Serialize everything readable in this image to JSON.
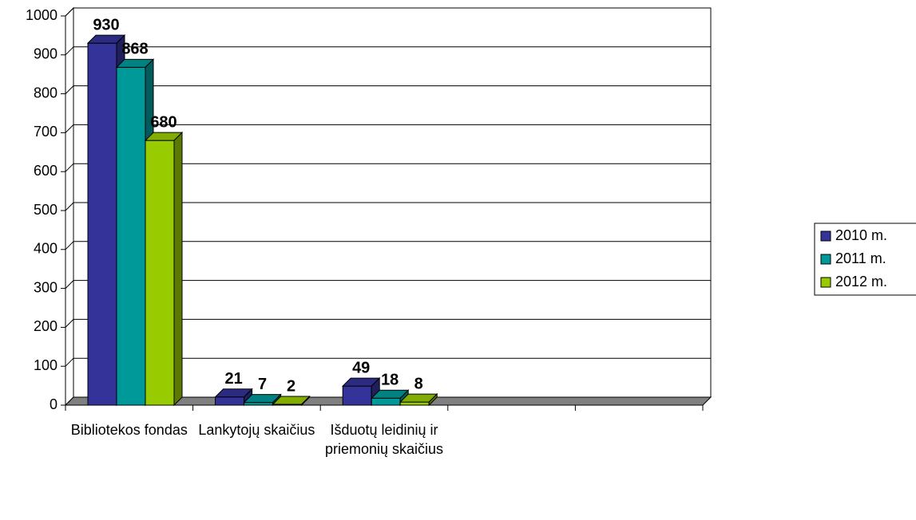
{
  "chart_data": {
    "type": "bar",
    "three_d": true,
    "categories": [
      "Bibliotekos fondas",
      "Lankytojų skaičius",
      "Išduotų leidinių ir priemonių skaičius",
      null,
      null
    ],
    "series": [
      {
        "name": "2010 m.",
        "color": "#333399",
        "values": [
          930,
          21,
          49,
          null,
          null
        ]
      },
      {
        "name": "2011 m.",
        "color": "#009999",
        "values": [
          868,
          7,
          18,
          null,
          null
        ]
      },
      {
        "name": "2012 m.",
        "color": "#99cc00",
        "values": [
          680,
          2,
          8,
          null,
          null
        ]
      }
    ],
    "ylim": [
      0,
      1000
    ],
    "yticks": [
      0,
      100,
      200,
      300,
      400,
      500,
      600,
      700,
      800,
      900,
      1000
    ],
    "grid": true,
    "legend": "right"
  }
}
